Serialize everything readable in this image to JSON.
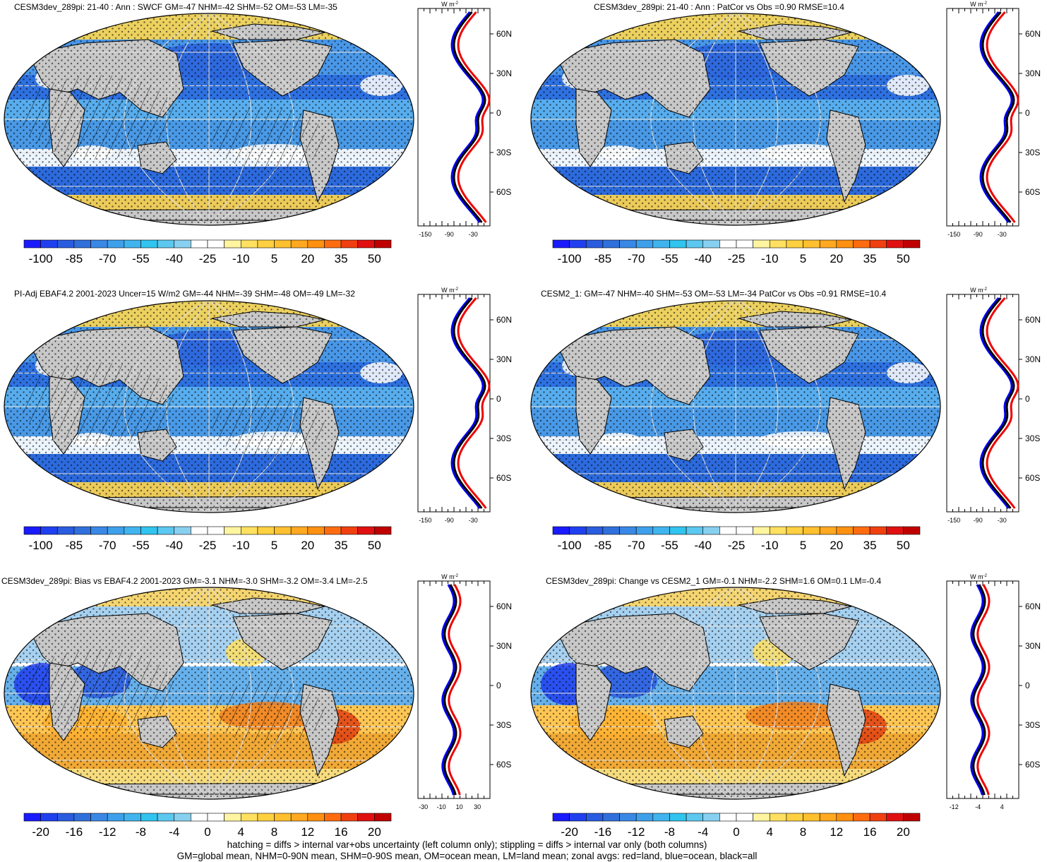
{
  "panels": [
    {
      "id": "p1",
      "title": "CESM3dev_289pi: 21-40 : Ann : SWCF GM=-47 NHM=-42 SHM=-52 OM=-53 LM=-35",
      "kind": "field",
      "hatch": true
    },
    {
      "id": "p2",
      "title": "CESM3dev_289pi: 21-40 : Ann : PatCor vs Obs =0.90 RMSE=10.4",
      "kind": "field",
      "hatch": false
    },
    {
      "id": "p3",
      "title": "PI-Adj EBAF4.2 2001-2023 Uncer=15 W/m2 GM=-44 NHM=-39 SHM=-48 OM=-49 LM=-32",
      "kind": "field",
      "hatch": true
    },
    {
      "id": "p4",
      "title": "CESM2_1: GM=-47 NHM=-40 SHM=-53 OM=-53 LM=-34 PatCor vs Obs =0.91 RMSE=10.4",
      "kind": "field",
      "hatch": false
    },
    {
      "id": "p5",
      "title": "CESM3dev_289pi: Bias vs EBAF4.2 2001-2023 GM=-3.1 NHM=-3.0 SHM=-3.2 OM=-3.4 LM=-2.5",
      "kind": "diff",
      "hatch": true
    },
    {
      "id": "p6",
      "title": "CESM3dev_289pi: Change vs CESM2_1 GM=-0.1 NHM=-2.2 SHM=1.6 OM=0.1 LM=-0.4",
      "kind": "diff",
      "hatch": false
    }
  ],
  "colorbars": {
    "field": {
      "labels": [
        "-100",
        "-85",
        "-70",
        "-55",
        "-40",
        "-25",
        "-10",
        "5",
        "20",
        "35",
        "50"
      ],
      "colors": [
        "#1a1aff",
        "#2040f0",
        "#2a5ce0",
        "#3070dc",
        "#3a88e6",
        "#3ea0ea",
        "#40b4ee",
        "#30c4ee",
        "#5cc8f0",
        "#88d0f0",
        "#ffffff",
        "#ffffff",
        "#fff4a0",
        "#ffe060",
        "#ffd040",
        "#ffc030",
        "#ffa820",
        "#ff9010",
        "#ff6c10",
        "#f04010",
        "#e01010",
        "#c00000"
      ]
    },
    "diff": {
      "labels": [
        "-20",
        "-16",
        "-12",
        "-8",
        "-4",
        "0",
        "4",
        "8",
        "12",
        "16",
        "20"
      ],
      "colors": [
        "#1a1aff",
        "#2040f0",
        "#2a5ce0",
        "#3070dc",
        "#3a88e6",
        "#3ea0ea",
        "#40b4ee",
        "#30c4ee",
        "#5cc8f0",
        "#88d0f0",
        "#ffffff",
        "#ffffff",
        "#fff4a0",
        "#ffe060",
        "#ffd040",
        "#ffc030",
        "#ffa820",
        "#ff9010",
        "#ff6c10",
        "#f04010",
        "#e01010",
        "#c00000"
      ]
    }
  },
  "zonal": {
    "units": "W m",
    "units_sup": "-2",
    "lat_labels": [
      "60N",
      "30N",
      "0",
      "30S",
      "60S"
    ],
    "field_xticks": [
      "-150",
      "-90",
      "-30"
    ],
    "bias_xticks": [
      "-30",
      "-10",
      "10",
      "30"
    ],
    "change_xticks": [
      "-12",
      "-4",
      "4"
    ],
    "legend": {
      "land": "#ee0000",
      "ocean": "#0000ee",
      "all": "#000000"
    }
  },
  "colors": {
    "land": "#c8c8c8",
    "ocean_blue": "#3a8ce6",
    "yellow": "#ffd84a"
  },
  "footer": {
    "line1": "hatching = diffs > internal var+obs uncertainty (left column only); stippling = diffs > internal var only (both columns)",
    "line2": "GM=global mean, NHM=0-90N mean, SHM=0-90S mean, OM=ocean mean, LM=land mean; zonal avgs: red=land, blue=ocean, black=all"
  }
}
